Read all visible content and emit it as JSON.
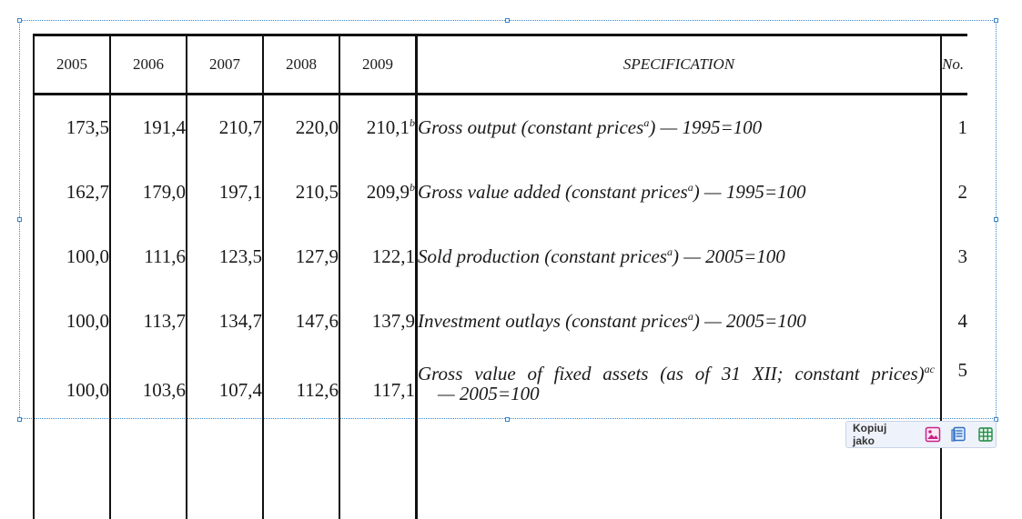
{
  "table": {
    "headers": {
      "years": [
        "2005",
        "2006",
        "2007",
        "2008",
        "2009"
      ],
      "specification": "SPECIFICATION",
      "no": "No."
    },
    "rows": [
      {
        "values": [
          "173,5",
          "191,4",
          "210,7",
          "220,0",
          "210,1"
        ],
        "last_sup": "b",
        "spec_pre": "Gross output (constant prices",
        "spec_sup": "a",
        "spec_post": ") — 1995=100",
        "no": "1"
      },
      {
        "values": [
          "162,7",
          "179,0",
          "197,1",
          "210,5",
          "209,9"
        ],
        "last_sup": "b",
        "spec_pre": "Gross value added (constant prices",
        "spec_sup": "a",
        "spec_post": ") — 1995=100",
        "no": "2"
      },
      {
        "values": [
          "100,0",
          "111,6",
          "123,5",
          "127,9",
          "122,1"
        ],
        "last_sup": "",
        "spec_pre": "Sold production (constant prices",
        "spec_sup": "a",
        "spec_post": ") — 2005=100",
        "no": "3"
      },
      {
        "values": [
          "100,0",
          "113,7",
          "134,7",
          "147,6",
          "137,9"
        ],
        "last_sup": "",
        "spec_pre": "Investment outlays (constant prices",
        "spec_sup": "a",
        "spec_post": ") — 2005=100",
        "no": "4"
      },
      {
        "values": [
          "100,0",
          "103,6",
          "107,4",
          "112,6",
          "117,1"
        ],
        "last_sup": "",
        "spec_pre": "Gross value of fixed assets (as of 31 XII; constant prices)",
        "spec_sup": "ac",
        "spec_post": "— 2005=100",
        "no": "5"
      }
    ]
  },
  "copy_toolbar": {
    "label": "Kopiuj jako",
    "icons": [
      "image-icon",
      "text-icon",
      "table-icon"
    ]
  }
}
